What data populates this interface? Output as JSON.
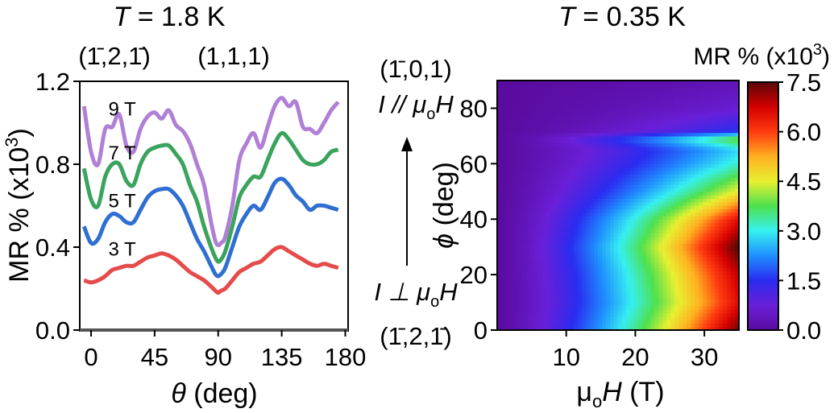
{
  "chart_data": [
    {
      "type": "line",
      "title_prefix": "T",
      "title": " = 1.8 K",
      "top_labels": [
        "(1̄,2,1̄)",
        "(1,1,1)"
      ],
      "xlabel_symbol": "θ",
      "xlabel": " (deg)",
      "ylabel": "MR % (x10",
      "ylabel_sup": "3",
      "ylabel_end": ")",
      "xlim": [
        -8,
        182
      ],
      "ylim": [
        0,
        1.2
      ],
      "xticks": [
        0,
        45,
        90,
        135,
        180
      ],
      "yticks": [
        0.0,
        0.4,
        0.8,
        1.2
      ],
      "xtick_labels": [
        "0",
        "45",
        "90",
        "135",
        "180"
      ],
      "ytick_labels": [
        "0.0",
        "0.4",
        "0.8",
        "1.2"
      ],
      "grid": false,
      "series": [
        {
          "name": "9 T",
          "color": "#b07fd6",
          "x": [
            -5,
            0,
            5,
            10,
            15,
            20,
            25,
            30,
            35,
            40,
            45,
            50,
            55,
            60,
            65,
            70,
            75,
            80,
            85,
            88,
            90,
            92,
            95,
            100,
            105,
            110,
            115,
            120,
            125,
            130,
            135,
            140,
            145,
            150,
            155,
            160,
            165,
            170,
            175
          ],
          "y": [
            1.08,
            0.86,
            0.8,
            0.97,
            0.98,
            1.04,
            0.89,
            0.86,
            0.97,
            1.03,
            1.05,
            1.02,
            1.06,
            0.99,
            0.96,
            0.9,
            0.8,
            0.7,
            0.52,
            0.43,
            0.41,
            0.42,
            0.45,
            0.6,
            0.82,
            0.9,
            0.95,
            0.88,
            0.98,
            1.08,
            1.12,
            1.08,
            1.1,
            0.98,
            0.97,
            0.95,
            1.0,
            1.06,
            1.1
          ]
        },
        {
          "name": "7 T",
          "color": "#3aa35c",
          "x": [
            -5,
            0,
            5,
            10,
            15,
            20,
            25,
            30,
            35,
            40,
            45,
            50,
            55,
            60,
            65,
            70,
            75,
            80,
            85,
            88,
            90,
            92,
            95,
            100,
            105,
            110,
            115,
            120,
            125,
            130,
            135,
            140,
            145,
            150,
            155,
            160,
            165,
            170,
            175
          ],
          "y": [
            0.78,
            0.63,
            0.6,
            0.74,
            0.8,
            0.8,
            0.72,
            0.7,
            0.8,
            0.86,
            0.88,
            0.89,
            0.89,
            0.85,
            0.8,
            0.7,
            0.62,
            0.5,
            0.4,
            0.35,
            0.33,
            0.34,
            0.38,
            0.5,
            0.64,
            0.7,
            0.74,
            0.74,
            0.82,
            0.9,
            0.95,
            0.92,
            0.87,
            0.82,
            0.8,
            0.8,
            0.82,
            0.86,
            0.87
          ]
        },
        {
          "name": "5 T",
          "color": "#2f6fd1",
          "x": [
            -5,
            0,
            5,
            10,
            15,
            20,
            25,
            30,
            35,
            40,
            45,
            50,
            55,
            60,
            65,
            70,
            75,
            80,
            85,
            88,
            90,
            92,
            95,
            100,
            105,
            110,
            115,
            120,
            125,
            130,
            135,
            140,
            145,
            150,
            155,
            160,
            165,
            170,
            175
          ],
          "y": [
            0.5,
            0.42,
            0.44,
            0.52,
            0.56,
            0.55,
            0.52,
            0.52,
            0.58,
            0.64,
            0.67,
            0.68,
            0.68,
            0.65,
            0.6,
            0.52,
            0.44,
            0.38,
            0.31,
            0.27,
            0.26,
            0.27,
            0.3,
            0.4,
            0.5,
            0.56,
            0.6,
            0.58,
            0.64,
            0.71,
            0.73,
            0.7,
            0.65,
            0.62,
            0.58,
            0.6,
            0.6,
            0.59,
            0.58
          ]
        },
        {
          "name": "3 T",
          "color": "#e54b4b",
          "x": [
            -5,
            0,
            5,
            10,
            15,
            20,
            25,
            30,
            35,
            40,
            45,
            50,
            55,
            60,
            65,
            70,
            75,
            80,
            85,
            88,
            90,
            92,
            95,
            100,
            105,
            110,
            115,
            120,
            125,
            130,
            135,
            140,
            145,
            150,
            155,
            160,
            165,
            170,
            175
          ],
          "y": [
            0.24,
            0.23,
            0.24,
            0.26,
            0.29,
            0.3,
            0.31,
            0.31,
            0.33,
            0.35,
            0.36,
            0.37,
            0.36,
            0.34,
            0.31,
            0.28,
            0.26,
            0.24,
            0.21,
            0.19,
            0.18,
            0.19,
            0.2,
            0.24,
            0.28,
            0.3,
            0.32,
            0.33,
            0.36,
            0.39,
            0.4,
            0.38,
            0.36,
            0.34,
            0.32,
            0.31,
            0.32,
            0.31,
            0.3
          ]
        }
      ]
    },
    {
      "type": "heatmap",
      "title_prefix": "T",
      "title": " = 0.35 K",
      "xlabel_prefix": "μ",
      "xlabel_sub": "o",
      "xlabel_symbol": "H",
      "xlabel": " (T)",
      "ylabel_symbol": "ϕ",
      "ylabel": " (deg)",
      "xlim": [
        0,
        35
      ],
      "ylim": [
        0,
        90
      ],
      "xticks": [
        10,
        20,
        30
      ],
      "yticks": [
        0,
        20,
        40,
        60,
        80
      ],
      "xtick_labels": [
        "10",
        "20",
        "30"
      ],
      "ytick_labels": [
        "0",
        "20",
        "40",
        "60",
        "80"
      ],
      "colorbar_title": "MR % (x10",
      "colorbar_sup": "3",
      "colorbar_end": ")",
      "colorbar_range": [
        0,
        7.5
      ],
      "colorbar_ticks": [
        "0.0",
        "1.5",
        "3.0",
        "4.5",
        "6.0",
        "7.5"
      ],
      "colorbar_tick_values": [
        0,
        1.5,
        3.0,
        4.5,
        6.0,
        7.5
      ],
      "colormap": [
        "#5a0ca0",
        "#6a1fd8",
        "#2a2cf0",
        "#1f8fff",
        "#36f0f0",
        "#4ee04e",
        "#e8f030",
        "#ffb020",
        "#ff3a10",
        "#d40000",
        "#5a0808"
      ],
      "side_labels": {
        "top_direction": "(1̄,0,1)",
        "top_relation": "I // μ",
        "top_relation_sub": "o",
        "top_relation_end": "H",
        "bottom_relation": "I ⊥ μ",
        "bottom_relation_sub": "o",
        "bottom_relation_end": "H",
        "bottom_direction": "(1̄,2,1̄)"
      },
      "phi_profiles": [
        {
          "phi": 0,
          "max_mr": 7.4
        },
        {
          "phi": 10,
          "max_mr": 6.6
        },
        {
          "phi": 20,
          "max_mr": 6.9
        },
        {
          "phi": 30,
          "max_mr": 7.6
        },
        {
          "phi": 40,
          "max_mr": 6.6
        },
        {
          "phi": 50,
          "max_mr": 4.6
        },
        {
          "phi": 60,
          "max_mr": 3.2
        },
        {
          "phi": 65,
          "max_mr": 2.8
        },
        {
          "phi": 69,
          "max_mr": 4.0
        },
        {
          "phi": 72,
          "max_mr": 1.5
        },
        {
          "phi": 80,
          "max_mr": 0.7
        },
        {
          "phi": 90,
          "max_mr": 0.3
        }
      ]
    }
  ]
}
